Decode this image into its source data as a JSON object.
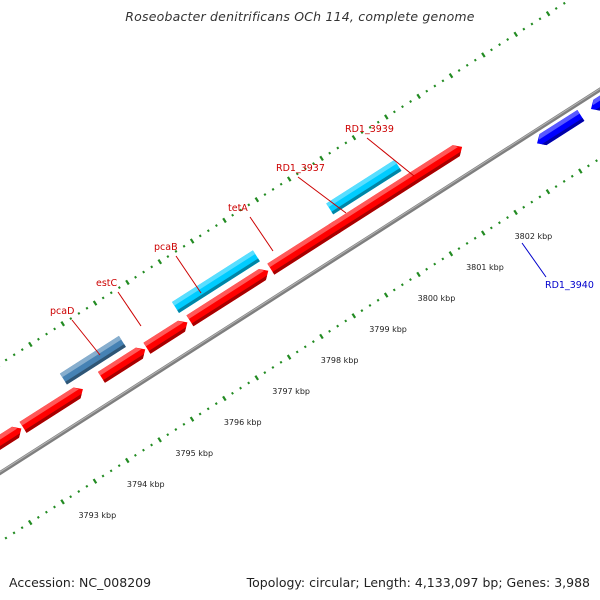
{
  "title": "Roseobacter denitrificans OCh 114, complete genome",
  "footer": {
    "accession": "Accession: NC_008209",
    "summary": "Topology: circular; Length: 4,133,097 bp; Genes: 3,988"
  },
  "colors": {
    "forward_cds": "#ff0000",
    "reverse_cds": "#0000ff",
    "forward_rna": "#00ccff",
    "other": "#4682b4",
    "backbone": "#7f7f7f",
    "ticks": "#228b22",
    "forward_label": "#cc0000",
    "reverse_label": "#0000cc"
  },
  "scale": {
    "unit": "kbp",
    "labels": [
      "3793 kbp",
      "3794 kbp",
      "3795 kbp",
      "3796 kbp",
      "3797 kbp",
      "3798 kbp",
      "3799 kbp",
      "3800 kbp",
      "3801 kbp",
      "3802 kbp"
    ]
  },
  "gene_labels": [
    {
      "text": "pcaD",
      "strand": "forward"
    },
    {
      "text": "estC",
      "strand": "forward"
    },
    {
      "text": "pcaB",
      "strand": "forward"
    },
    {
      "text": "tetA",
      "strand": "forward"
    },
    {
      "text": "RD1_3937",
      "strand": "forward"
    },
    {
      "text": "RD1_3939",
      "strand": "forward"
    },
    {
      "text": "RD1_3940",
      "strand": "reverse"
    }
  ]
}
